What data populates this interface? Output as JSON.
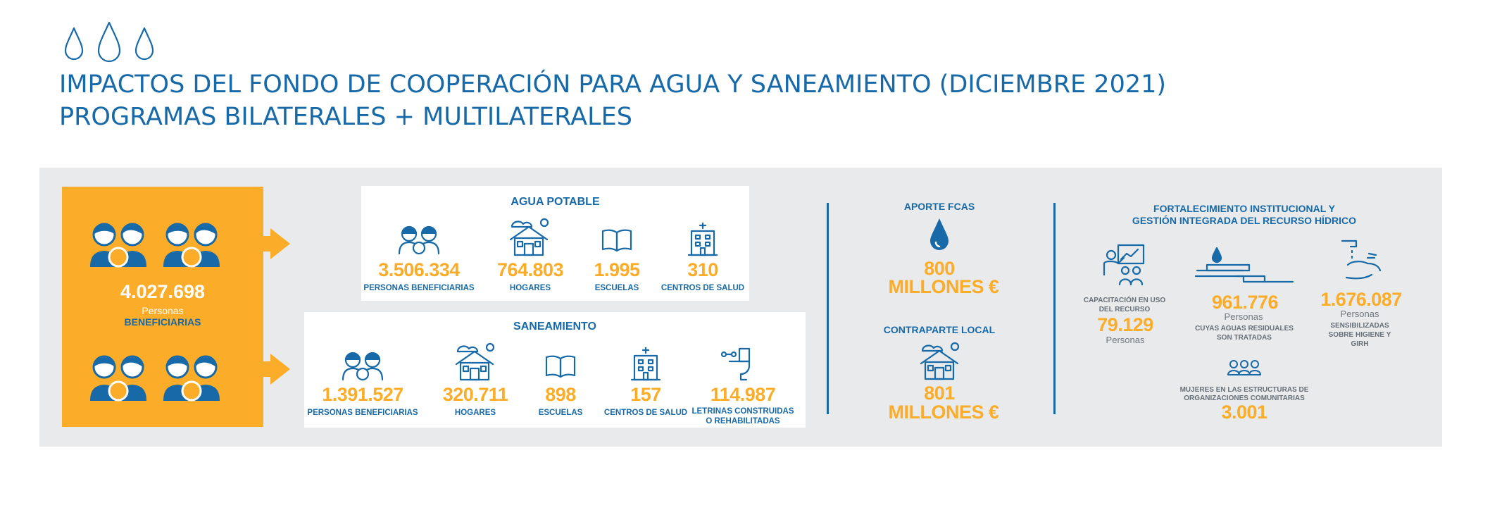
{
  "header": {
    "title_line1": "IMPACTOS DEL FONDO DE COOPERACIÓN PARA AGUA Y SANEAMIENTO (DICIEMBRE 2021)",
    "title_line2": "PROGRAMAS BILATERALES + MULTILATERALES"
  },
  "total": {
    "number": "4.027.698",
    "label1": "Personas",
    "label2": "BENEFICIARIAS"
  },
  "agua": {
    "title": "AGUA POTABLE",
    "items": [
      {
        "icon": "people-icon",
        "number": "3.506.334",
        "label": "PERSONAS BENEFICIARIAS"
      },
      {
        "icon": "house-icon",
        "number": "764.803",
        "label": "HOGARES"
      },
      {
        "icon": "book-icon",
        "number": "1.995",
        "label": "ESCUELAS"
      },
      {
        "icon": "hospital-icon",
        "number": "310",
        "label": "CENTROS DE SALUD"
      }
    ]
  },
  "saneamiento": {
    "title": "SANEAMIENTO",
    "items": [
      {
        "icon": "people-icon",
        "number": "1.391.527",
        "label": "PERSONAS BENEFICIARIAS"
      },
      {
        "icon": "house-icon",
        "number": "320.711",
        "label": "HOGARES"
      },
      {
        "icon": "book-icon",
        "number": "898",
        "label": "ESCUELAS"
      },
      {
        "icon": "hospital-icon",
        "number": "157",
        "label": "CENTROS DE SALUD"
      },
      {
        "icon": "toilet-icon",
        "number": "114.987",
        "label1": "LETRINAS CONSTRUIDAS",
        "label2": "O REHABILITADAS"
      }
    ]
  },
  "aporte": {
    "title": "APORTE FCAS",
    "amount": "800",
    "unit": "MILLONES €"
  },
  "contraparte": {
    "title": "CONTRAPARTE LOCAL",
    "amount": "801",
    "unit": "MILLONES €"
  },
  "fortalecimiento": {
    "title1": "FORTALECIMIENTO INSTITUCIONAL Y",
    "title2": "GESTIÓN INTEGRADA DEL RECURSO HÍDRICO",
    "capacitacion": {
      "label1": "CAPACITACIÓN EN USO",
      "label2": "DEL RECURSO",
      "number": "79.129",
      "unit": "Personas"
    },
    "aguas": {
      "number": "961.776",
      "unit": "Personas",
      "label1": "CUYAS AGUAS RESIDUALES",
      "label2": "SON TRATADAS"
    },
    "sensibilizadas": {
      "number": "1.676.087",
      "unit": "Personas",
      "label1": "SENSIBILIZADAS",
      "label2": "SOBRE HIGIENE Y",
      "label3": "GIRH"
    },
    "mujeres": {
      "label1": "MUJERES EN LAS ESTRUCTURAS DE",
      "label2": "ORGANIZACIONES COMUNITARIAS",
      "number": "3.001"
    }
  },
  "colors": {
    "blue": "#1769a8",
    "orange": "#fbad29",
    "panel": "#e9eaeb"
  }
}
